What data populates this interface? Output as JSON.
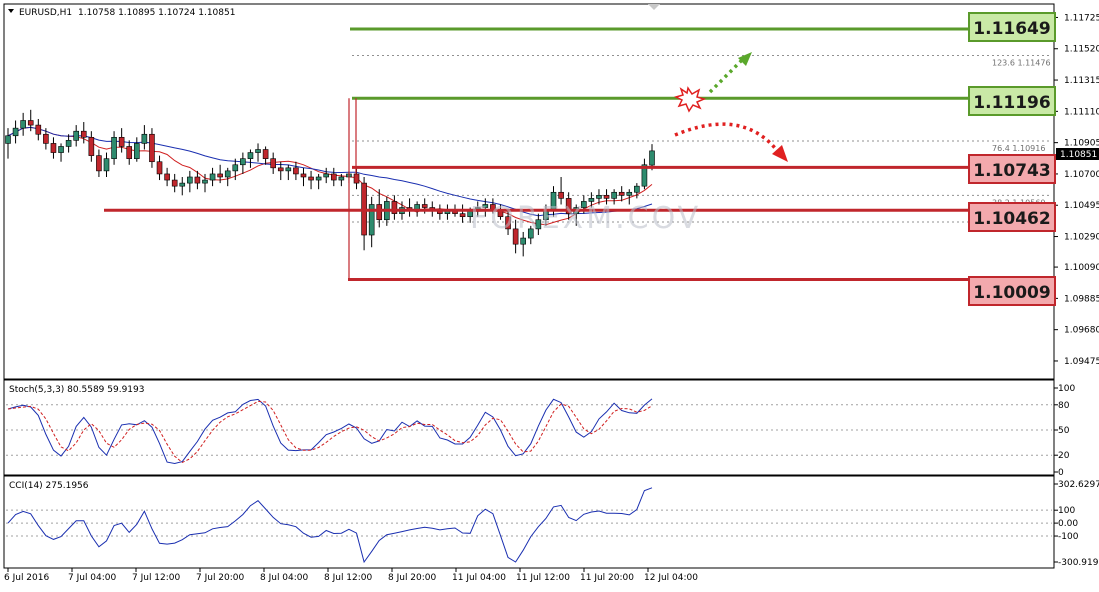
{
  "header": {
    "symbol": "EURUSD,H1",
    "ohlc": "1.10758 1.10895 1.10724 1.10851"
  },
  "price_panel": {
    "current_price": "1.10851",
    "y_ticks": [
      "1.11725",
      "1.11520",
      "1.11315",
      "1.11110",
      "1.10905",
      "1.10700",
      "1.10495",
      "1.10290",
      "1.10090",
      "1.09885",
      "1.09680",
      "1.09475"
    ],
    "fib_labels": [
      "123.6 1.11476",
      "76.4 1.10916",
      "38.2 1.10560",
      "23.6 1.10385"
    ],
    "levels": [
      {
        "value": "1.11649",
        "kind": "resistance",
        "color": "#5a9a2b"
      },
      {
        "value": "1.11196",
        "kind": "resistance",
        "color": "#5a9a2b"
      },
      {
        "value": "1.10743",
        "kind": "support",
        "color": "#c0262c"
      },
      {
        "value": "1.10462",
        "kind": "support",
        "color": "#c0262c"
      },
      {
        "value": "1.10009",
        "kind": "support",
        "color": "#c0262c"
      }
    ],
    "watermark": "FOREXM.COV"
  },
  "stoch_panel": {
    "label": "Stoch(5,3,3) 80.5589 59.9193",
    "y_ticks": [
      "100",
      "80",
      "50",
      "20",
      "0"
    ]
  },
  "cci_panel": {
    "label": "CCI(14) 275.1956",
    "y_ticks": [
      "302.6297",
      "100",
      "0.00",
      "-100",
      "-300.9197"
    ]
  },
  "x_ticks": [
    "6 Jul 2016",
    "7 Jul 04:00",
    "7 Jul 12:00",
    "7 Jul 20:00",
    "8 Jul 04:00",
    "8 Jul 12:00",
    "8 Jul 20:00",
    "11 Jul 04:00",
    "11 Jul 12:00",
    "11 Jul 20:00",
    "12 Jul 04:00"
  ],
  "colors": {
    "bull_candle": "#2e8b6e",
    "bear_candle": "#c0262c",
    "ma_fast": "#d02020",
    "ma_slow": "#1a2fb0",
    "stoch_main": "#1a2fb0",
    "stoch_signal": "#d02020",
    "cci_line": "#1a2fb0"
  },
  "chart_data": {
    "type": "candlestick",
    "symbol": "EURUSD",
    "timeframe": "H1",
    "ylim": [
      1.0937,
      1.118
    ],
    "current_price": 1.10851,
    "levels": [
      1.11649,
      1.11196,
      1.10743,
      1.10462,
      1.10009
    ],
    "fibonacci": [
      {
        "ratio": "123.6",
        "price": 1.11476
      },
      {
        "ratio": "76.4",
        "price": 1.10916
      },
      {
        "ratio": "38.2",
        "price": 1.1056
      },
      {
        "ratio": "23.6",
        "price": 1.10385
      }
    ],
    "candles": [
      [
        1.109,
        1.11,
        1.108,
        1.1095
      ],
      [
        1.1095,
        1.1105,
        1.109,
        1.11
      ],
      [
        1.11,
        1.111,
        1.1095,
        1.1105
      ],
      [
        1.1105,
        1.1112,
        1.1098,
        1.1102
      ],
      [
        1.1102,
        1.1106,
        1.1092,
        1.1096
      ],
      [
        1.1096,
        1.11,
        1.1086,
        1.109
      ],
      [
        1.109,
        1.1094,
        1.108,
        1.1084
      ],
      [
        1.1084,
        1.109,
        1.1078,
        1.1088
      ],
      [
        1.1088,
        1.1096,
        1.1084,
        1.1092
      ],
      [
        1.1092,
        1.1102,
        1.1088,
        1.1098
      ],
      [
        1.1098,
        1.1104,
        1.109,
        1.1094
      ],
      [
        1.1094,
        1.1098,
        1.1078,
        1.1082
      ],
      [
        1.1082,
        1.1086,
        1.1068,
        1.1072
      ],
      [
        1.1072,
        1.1084,
        1.1068,
        1.108
      ],
      [
        1.108,
        1.1098,
        1.1076,
        1.1094
      ],
      [
        1.1094,
        1.11,
        1.1084,
        1.1088
      ],
      [
        1.1088,
        1.1092,
        1.1076,
        1.108
      ],
      [
        1.108,
        1.1094,
        1.1078,
        1.109
      ],
      [
        1.109,
        1.1102,
        1.1086,
        1.1096
      ],
      [
        1.1096,
        1.11,
        1.1074,
        1.1078
      ],
      [
        1.1078,
        1.1082,
        1.1066,
        1.107
      ],
      [
        1.107,
        1.1074,
        1.1062,
        1.1066
      ],
      [
        1.1066,
        1.107,
        1.1058,
        1.1062
      ],
      [
        1.1062,
        1.1068,
        1.1056,
        1.1064
      ],
      [
        1.1064,
        1.1072,
        1.1058,
        1.1068
      ],
      [
        1.1068,
        1.1072,
        1.106,
        1.1064
      ],
      [
        1.1064,
        1.107,
        1.1058,
        1.1066
      ],
      [
        1.1066,
        1.1074,
        1.1062,
        1.107
      ],
      [
        1.107,
        1.1076,
        1.1064,
        1.1068
      ],
      [
        1.1068,
        1.1074,
        1.1062,
        1.1072
      ],
      [
        1.1072,
        1.108,
        1.1066,
        1.1076
      ],
      [
        1.1076,
        1.1084,
        1.107,
        1.108
      ],
      [
        1.108,
        1.1086,
        1.1074,
        1.1084
      ],
      [
        1.1084,
        1.109,
        1.1078,
        1.1086
      ],
      [
        1.1086,
        1.1088,
        1.1076,
        1.108
      ],
      [
        1.108,
        1.1084,
        1.107,
        1.1074
      ],
      [
        1.1074,
        1.1078,
        1.1066,
        1.1072
      ],
      [
        1.1072,
        1.1076,
        1.1066,
        1.1074
      ],
      [
        1.1074,
        1.1078,
        1.1066,
        1.107
      ],
      [
        1.107,
        1.1074,
        1.1062,
        1.1068
      ],
      [
        1.1068,
        1.1072,
        1.106,
        1.1066
      ],
      [
        1.1066,
        1.107,
        1.106,
        1.1068
      ],
      [
        1.1068,
        1.1074,
        1.1064,
        1.107
      ],
      [
        1.107,
        1.1074,
        1.1062,
        1.1066
      ],
      [
        1.1066,
        1.107,
        1.1062,
        1.1068
      ],
      [
        1.1068,
        1.1072,
        1.1064,
        1.107
      ],
      [
        1.107,
        1.1074,
        1.106,
        1.1064
      ],
      [
        1.1064,
        1.1068,
        1.102,
        1.103
      ],
      [
        1.103,
        1.1055,
        1.1022,
        1.105
      ],
      [
        1.105,
        1.106,
        1.1035,
        1.104
      ],
      [
        1.104,
        1.1055,
        1.1036,
        1.1052
      ],
      [
        1.1052,
        1.1056,
        1.104,
        1.1044
      ],
      [
        1.1044,
        1.1052,
        1.104,
        1.1048
      ],
      [
        1.1048,
        1.1054,
        1.1042,
        1.1046
      ],
      [
        1.1046,
        1.1052,
        1.1042,
        1.105
      ],
      [
        1.105,
        1.1054,
        1.1044,
        1.1048
      ],
      [
        1.1048,
        1.1052,
        1.1042,
        1.1046
      ],
      [
        1.1046,
        1.105,
        1.104,
        1.1044
      ],
      [
        1.1044,
        1.105,
        1.104,
        1.1046
      ],
      [
        1.1046,
        1.105,
        1.1042,
        1.1044
      ],
      [
        1.1044,
        1.105,
        1.1038,
        1.1042
      ],
      [
        1.1042,
        1.1048,
        1.1038,
        1.1046
      ],
      [
        1.1046,
        1.1052,
        1.1042,
        1.1048
      ],
      [
        1.1048,
        1.1054,
        1.1042,
        1.105
      ],
      [
        1.105,
        1.1054,
        1.1044,
        1.1046
      ],
      [
        1.1046,
        1.105,
        1.104,
        1.1042
      ],
      [
        1.1042,
        1.1046,
        1.103,
        1.1034
      ],
      [
        1.1034,
        1.104,
        1.1018,
        1.1024
      ],
      [
        1.1024,
        1.1032,
        1.1016,
        1.1028
      ],
      [
        1.1028,
        1.1036,
        1.1024,
        1.1034
      ],
      [
        1.1034,
        1.1044,
        1.103,
        1.104
      ],
      [
        1.104,
        1.105,
        1.1036,
        1.1046
      ],
      [
        1.1046,
        1.1062,
        1.1042,
        1.1058
      ],
      [
        1.1058,
        1.1068,
        1.105,
        1.1054
      ],
      [
        1.1054,
        1.1058,
        1.104,
        1.1044
      ],
      [
        1.1044,
        1.105,
        1.1036,
        1.1048
      ],
      [
        1.1048,
        1.1056,
        1.1044,
        1.1052
      ],
      [
        1.1052,
        1.1058,
        1.1048,
        1.1054
      ],
      [
        1.1054,
        1.106,
        1.105,
        1.1056
      ],
      [
        1.1056,
        1.106,
        1.105,
        1.1054
      ],
      [
        1.1054,
        1.106,
        1.105,
        1.1058
      ],
      [
        1.1058,
        1.1062,
        1.1052,
        1.1056
      ],
      [
        1.1056,
        1.106,
        1.105,
        1.1058
      ],
      [
        1.1058,
        1.1064,
        1.1054,
        1.1062
      ],
      [
        1.1062,
        1.108,
        1.106,
        1.1076
      ],
      [
        1.10758,
        1.10895,
        1.10724,
        1.10851
      ]
    ]
  }
}
